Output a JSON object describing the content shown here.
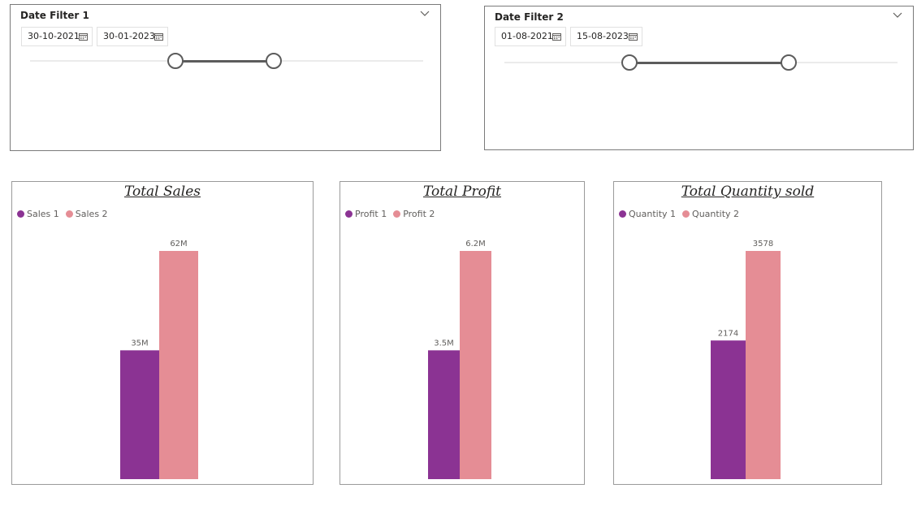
{
  "colors": {
    "series1": "#8b3393",
    "series2": "#e58d95"
  },
  "filter1": {
    "title": "Date Filter 1",
    "start": "30-10-2021",
    "end": "30-01-2023",
    "icons": [
      "chevron-down-icon",
      "calendar-icon"
    ]
  },
  "filter2": {
    "title": "Date Filter 2",
    "start": "01-08-2021",
    "end": "15-08-2023",
    "icons": [
      "chevron-down-icon",
      "calendar-icon"
    ]
  },
  "chart_data": [
    {
      "type": "bar",
      "title": "Total Sales",
      "categories": [
        ""
      ],
      "series": [
        {
          "name": "Sales 1",
          "values": [
            35000000
          ],
          "label": "35M"
        },
        {
          "name": "Sales 2",
          "values": [
            62000000
          ],
          "label": "62M"
        }
      ],
      "ylim": [
        0,
        62000000
      ],
      "legend": "top-left",
      "grid": false
    },
    {
      "type": "bar",
      "title": "Total Profit",
      "categories": [
        ""
      ],
      "series": [
        {
          "name": "Profit 1",
          "values": [
            3500000
          ],
          "label": "3.5M"
        },
        {
          "name": "Profit 2",
          "values": [
            6200000
          ],
          "label": "6.2M"
        }
      ],
      "ylim": [
        0,
        6200000
      ],
      "legend": "top-left",
      "grid": false
    },
    {
      "type": "bar",
      "title": "Total Quantity sold",
      "categories": [
        ""
      ],
      "series": [
        {
          "name": "Quantity 1",
          "values": [
            2174
          ],
          "label": "2174"
        },
        {
          "name": "Quantity 2",
          "values": [
            3578
          ],
          "label": "3578"
        }
      ],
      "ylim": [
        0,
        3578
      ],
      "legend": "top-left",
      "grid": false
    }
  ]
}
